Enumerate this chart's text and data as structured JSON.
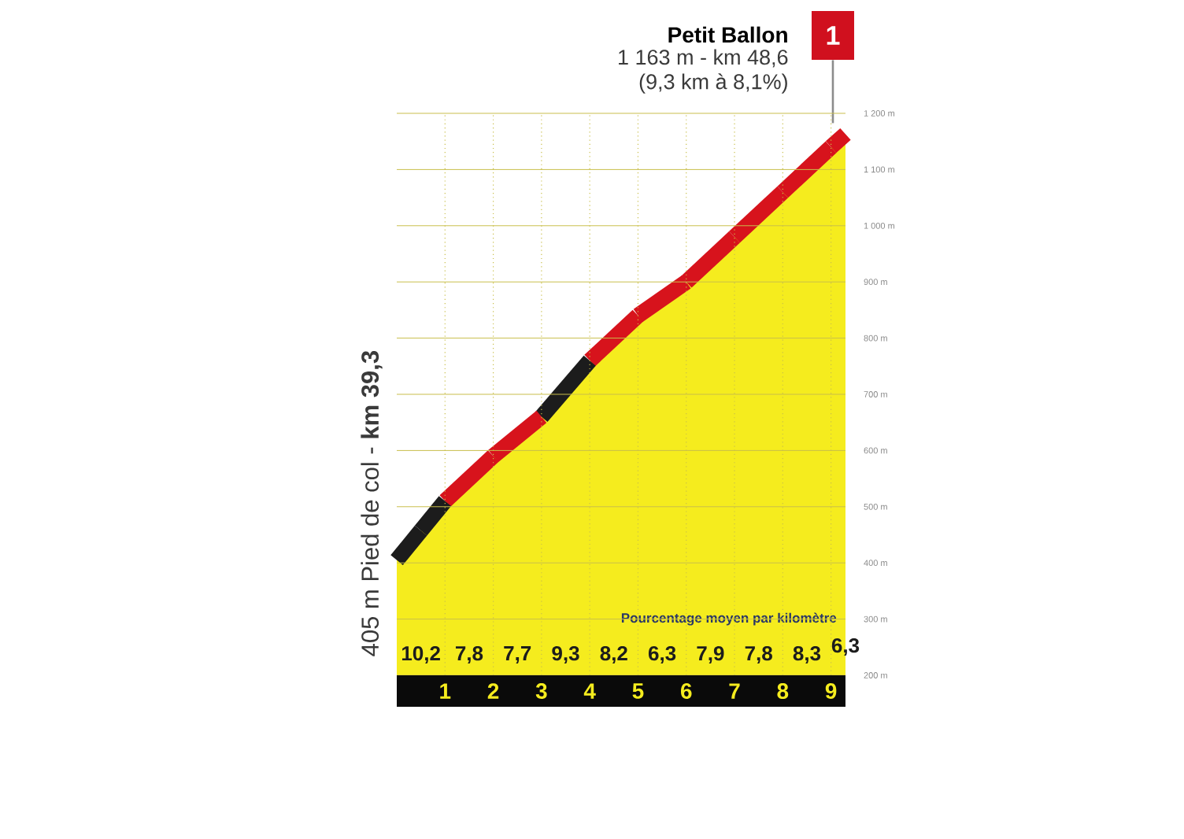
{
  "chart_data": {
    "type": "area",
    "title": "Petit Ballon",
    "subtitle": "1 163 m - km 48,6",
    "annotations": [
      {
        "text": "405 m Pied de col - **km 39,3**",
        "x": 0,
        "y": 405
      },
      "1",
      "(9,3 km à 8,1%)",
      "Pourcentage moyen par kilomètre",
      "10,2",
      "7,8",
      "7,7",
      "9,3",
      "8,2",
      "6,3",
      "7,9",
      "7,8",
      "8,3",
      "6,3"
    ],
    "x": [
      0,
      1,
      2,
      3,
      4,
      5,
      6,
      7,
      8,
      9,
      9.3
    ],
    "series": [
      {
        "color": "#f5ec1e",
        "colors": [
          "#1c1c1c",
          "#1c1c1c",
          "#d7131c",
          "#d7131c",
          "#1c1c1c",
          "#d7131c",
          "#d7131c",
          "#d7131c",
          "#d7131c",
          "#d7131c",
          "#d7131c"
        ],
        "values": [
          405,
          510,
          590,
          660,
          760,
          840,
          900,
          980,
          1060,
          1140,
          1163
        ]
      }
    ],
    "xlim": [
      0,
      9.3
    ],
    "ylim": [
      200,
      1200
    ],
    "xticks": [
      1,
      2,
      3,
      4,
      5,
      6,
      7,
      8,
      9
    ],
    "yticks": [
      {
        "value": 200,
        "label": "200 m"
      },
      {
        "value": 300,
        "label": "300 m"
      },
      {
        "value": 400,
        "label": "400 m"
      },
      {
        "value": 500,
        "label": "500 m"
      },
      {
        "value": 600,
        "label": "600 m"
      },
      {
        "value": 700,
        "label": "700 m"
      },
      {
        "value": 800,
        "label": "800 m"
      },
      {
        "value": 900,
        "label": "900 m"
      },
      {
        "value": 1000,
        "label": "1 000 m"
      },
      {
        "value": 1100,
        "label": "1 100 m"
      },
      {
        "value": 1200,
        "label": "1 200 m"
      }
    ],
    "grid": true
  }
}
